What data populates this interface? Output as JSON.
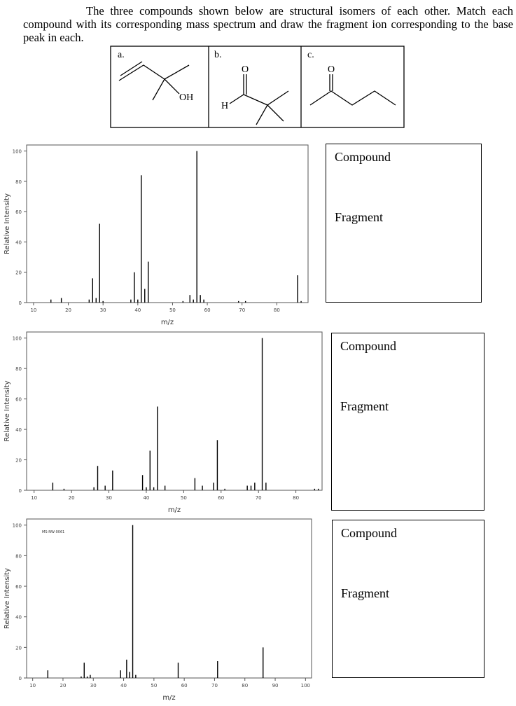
{
  "header": {
    "text": "The three compounds shown below are structural isomers of each other. Match each compound with its corresponding mass spectrum and draw the fragment ion corresponding to the base peak in each."
  },
  "structures": [
    {
      "label": "a.",
      "atoms": [
        "OH"
      ]
    },
    {
      "label": "b.",
      "atoms": [
        "O",
        "H"
      ]
    },
    {
      "label": "c.",
      "atoms": [
        "O"
      ]
    }
  ],
  "chart_data": [
    {
      "type": "bar",
      "x_label": "m/z",
      "y_label": "Relative Intensity",
      "color": "#000000",
      "x": [
        15,
        18,
        26,
        27,
        28,
        29,
        30,
        38,
        39,
        40,
        41,
        42,
        43,
        53,
        55,
        56,
        57,
        58,
        59,
        69,
        71,
        86,
        87
      ],
      "values": [
        2,
        3,
        2,
        16,
        3,
        52,
        1,
        2,
        20,
        2,
        84,
        9,
        27,
        1,
        5,
        2,
        100,
        5,
        2,
        1,
        1,
        18,
        1
      ],
      "xlim": [
        8,
        89
      ],
      "ylim": [
        0,
        104
      ],
      "xticks": [
        10,
        20,
        30,
        40,
        50,
        60,
        70,
        80
      ],
      "yticks": [
        0,
        20,
        40,
        60,
        80,
        100
      ]
    },
    {
      "type": "bar",
      "x_label": "m/z",
      "y_label": "Relative Intensity",
      "color": "#000000",
      "x": [
        15,
        18,
        26,
        27,
        29,
        31,
        39,
        40,
        41,
        42,
        43,
        45,
        53,
        55,
        58,
        59,
        61,
        67,
        68,
        69,
        71,
        72,
        85,
        86
      ],
      "values": [
        5,
        1,
        2,
        16,
        3,
        13,
        10,
        2,
        26,
        2,
        55,
        3,
        8,
        3,
        5,
        33,
        1,
        3,
        3,
        5,
        100,
        5,
        1,
        1
      ],
      "xlim": [
        8,
        87
      ],
      "ylim": [
        0,
        104
      ],
      "xticks": [
        10,
        20,
        30,
        40,
        50,
        60,
        70,
        80
      ],
      "yticks": [
        0,
        20,
        40,
        60,
        80,
        100
      ]
    },
    {
      "type": "bar",
      "x_label": "m/z",
      "y_label": "Relative Intensity",
      "color": "#000000",
      "annotation": "MS-NW-0061",
      "x": [
        15,
        26,
        27,
        28,
        29,
        39,
        41,
        42,
        43,
        44,
        58,
        71,
        86
      ],
      "values": [
        5,
        1,
        10,
        1,
        2,
        5,
        12,
        4,
        100,
        2,
        10,
        11,
        20
      ],
      "xlim": [
        8,
        102
      ],
      "ylim": [
        0,
        104
      ],
      "xticks": [
        10,
        20,
        30,
        40,
        50,
        60,
        70,
        80,
        90,
        100
      ],
      "yticks": [
        0,
        20,
        40,
        60,
        80,
        100
      ]
    }
  ],
  "answer_boxes": [
    {
      "compound_label": "Compound",
      "fragment_label": "Fragment"
    },
    {
      "compound_label": "Compound",
      "fragment_label": "Fragment"
    },
    {
      "compound_label": "Compound",
      "fragment_label": "Fragment"
    }
  ]
}
